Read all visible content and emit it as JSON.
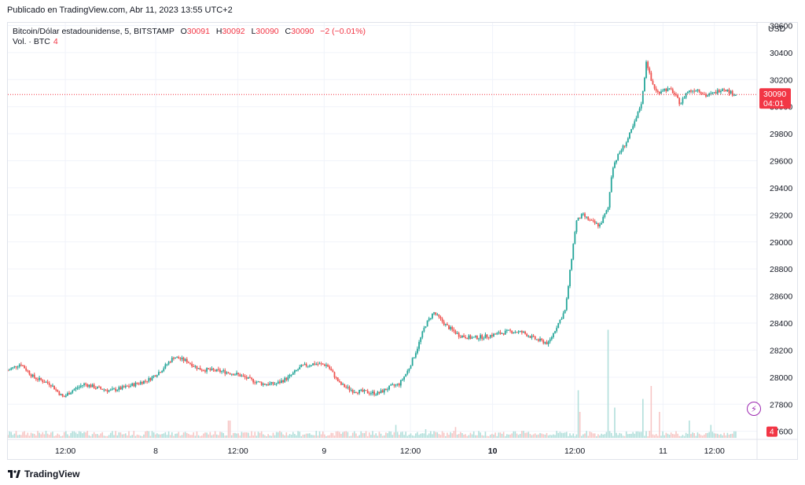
{
  "header": {
    "published": "Publicado en TradingView.com, Abr 11, 2023 13:55 UTC+2"
  },
  "legend": {
    "symbol": "Bitcoin/Dólar estadounidense, 5, BITSTAMP",
    "o_label": "O",
    "o_value": "30091",
    "h_label": "H",
    "h_value": "30092",
    "l_label": "L",
    "l_value": "30090",
    "c_label": "C",
    "c_value": "30090",
    "change": "−2 (−0.01%)",
    "vol_label": "Vol. · BTC",
    "vol_value": "4"
  },
  "price_axis": {
    "currency": "USD",
    "last_price": "30090",
    "countdown": "04:01",
    "volume_badge": "4"
  },
  "brand": {
    "name": "TradingView"
  },
  "colors": {
    "up": "#26a69a",
    "down": "#ef5350",
    "last_price": "#f23645",
    "grid": "#f0f3fa",
    "volume_up": "#b2dfdb",
    "volume_down": "#f7c6c5"
  },
  "chart_data": {
    "type": "candlestick",
    "title": "Bitcoin/Dólar estadounidense, 5, BITSTAMP",
    "ylabel": "USD",
    "ylim": [
      27540,
      30620
    ],
    "y_ticks": [
      27600,
      27800,
      28000,
      28200,
      28400,
      28600,
      28800,
      29000,
      29200,
      29400,
      29600,
      29800,
      30000,
      30200,
      30400,
      30600
    ],
    "x_ticks": [
      "12:00",
      "8",
      "12:00",
      "9",
      "12:00",
      "10",
      "12:00",
      "11",
      "12:00"
    ],
    "x_ticks_bold": [
      "10"
    ],
    "last_price": 30090,
    "price_path": [
      [
        0,
        28050
      ],
      [
        0.3,
        28100
      ],
      [
        0.6,
        28000
      ],
      [
        1.0,
        27950
      ],
      [
        1.3,
        27850
      ],
      [
        1.5,
        27900
      ],
      [
        1.8,
        27950
      ],
      [
        2.1,
        27920
      ],
      [
        2.4,
        27900
      ],
      [
        2.7,
        27920
      ],
      [
        3.0,
        27950
      ],
      [
        3.3,
        27980
      ],
      [
        3.6,
        28050
      ],
      [
        3.9,
        28150
      ],
      [
        4.2,
        28120
      ],
      [
        4.5,
        28060
      ],
      [
        4.8,
        28050
      ],
      [
        5.1,
        28040
      ],
      [
        5.4,
        28020
      ],
      [
        5.7,
        27980
      ],
      [
        6.0,
        27950
      ],
      [
        6.3,
        27950
      ],
      [
        6.6,
        28000
      ],
      [
        6.9,
        28080
      ],
      [
        7.2,
        28100
      ],
      [
        7.5,
        28090
      ],
      [
        7.8,
        27950
      ],
      [
        8.1,
        27900
      ],
      [
        8.4,
        27890
      ],
      [
        8.7,
        27880
      ],
      [
        9.0,
        27930
      ],
      [
        9.2,
        27950
      ],
      [
        9.4,
        28050
      ],
      [
        9.6,
        28200
      ],
      [
        9.8,
        28380
      ],
      [
        10.0,
        28480
      ],
      [
        10.3,
        28380
      ],
      [
        10.6,
        28310
      ],
      [
        10.9,
        28290
      ],
      [
        11.2,
        28300
      ],
      [
        11.5,
        28320
      ],
      [
        11.8,
        28340
      ],
      [
        12.1,
        28330
      ],
      [
        12.4,
        28280
      ],
      [
        12.7,
        28250
      ],
      [
        12.9,
        28380
      ],
      [
        13.1,
        28500
      ],
      [
        13.25,
        28900
      ],
      [
        13.35,
        29150
      ],
      [
        13.5,
        29200
      ],
      [
        13.7,
        29150
      ],
      [
        13.9,
        29120
      ],
      [
        14.1,
        29250
      ],
      [
        14.2,
        29550
      ],
      [
        14.35,
        29650
      ],
      [
        14.55,
        29750
      ],
      [
        14.75,
        29900
      ],
      [
        14.9,
        30050
      ],
      [
        15.0,
        30350
      ],
      [
        15.1,
        30200
      ],
      [
        15.25,
        30100
      ],
      [
        15.4,
        30130
      ],
      [
        15.6,
        30120
      ],
      [
        15.8,
        30020
      ],
      [
        15.95,
        30110
      ],
      [
        16.2,
        30130
      ],
      [
        16.4,
        30080
      ],
      [
        16.6,
        30100
      ],
      [
        16.8,
        30140
      ],
      [
        17.0,
        30100
      ],
      [
        17.1,
        30090
      ]
    ],
    "volume_spikes": [
      [
        5.2,
        40
      ],
      [
        9.1,
        30
      ],
      [
        9.8,
        20
      ],
      [
        10.5,
        25
      ],
      [
        11.9,
        15
      ],
      [
        13.4,
        110
      ],
      [
        13.45,
        60
      ],
      [
        14.1,
        250
      ],
      [
        14.25,
        70
      ],
      [
        14.9,
        90
      ],
      [
        15.1,
        120
      ],
      [
        15.3,
        60
      ],
      [
        16.0,
        40
      ],
      [
        16.5,
        30
      ]
    ]
  }
}
